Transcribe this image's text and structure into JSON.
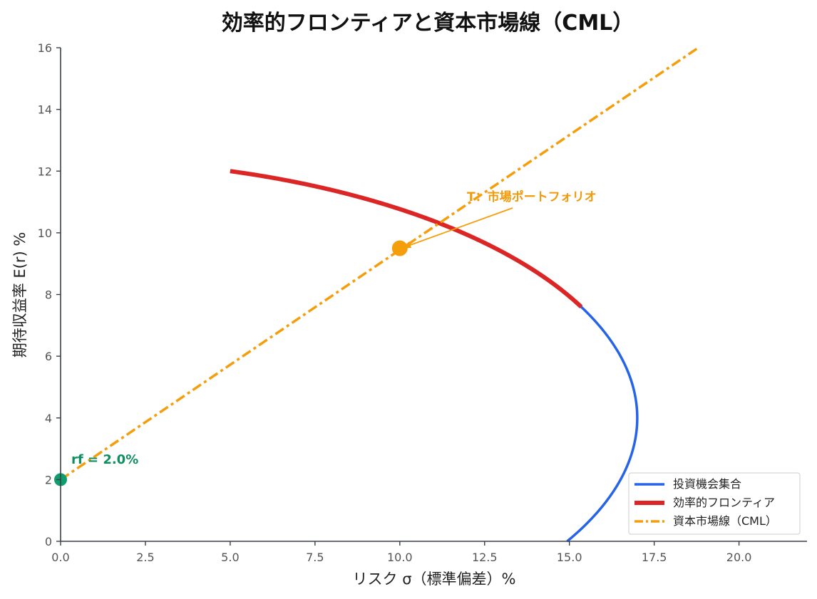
{
  "chart_data": {
    "type": "line",
    "title": "効率的フロンティアと資本市場線（CML）",
    "xlabel": "リスク σ（標準偏差）%",
    "ylabel": "期待収益率 E(r) %",
    "xlim": [
      0,
      22
    ],
    "ylim": [
      0,
      16
    ],
    "xticks": [
      "0.0",
      "2.5",
      "5.0",
      "7.5",
      "10.0",
      "12.5",
      "15.0",
      "17.5",
      "20.0"
    ],
    "yticks": [
      "0",
      "2",
      "4",
      "6",
      "8",
      "10",
      "12",
      "14",
      "16"
    ],
    "grid": false,
    "legend_position": "bottom-right",
    "series": [
      {
        "name": "投資機会集合",
        "color": "#2563eb",
        "style": "solid",
        "curve": {
          "type": "hyperbola",
          "sigma_min": 5.0,
          "sigma_max": 17.0,
          "return_at_min": 12.0,
          "return_at_max": 4.0,
          "return_range": [
            0,
            12
          ]
        }
      },
      {
        "name": "効率的フロンティア",
        "color": "#dc2626",
        "style": "solid",
        "curve": {
          "type": "hyperbola-segment",
          "return_range": [
            7.6,
            12
          ]
        }
      },
      {
        "name": "資本市場線（CML）",
        "color": "#f59e0b",
        "style": "dashdot",
        "x": [
          0,
          18.8
        ],
        "y": [
          2.0,
          16.0
        ]
      }
    ],
    "points": [
      {
        "label": "rf = 2.0%",
        "x": 0,
        "y": 2.0,
        "color": "#0f9d6e"
      },
      {
        "label": "T：市場ポートフォリオ",
        "x": 10.0,
        "y": 9.5,
        "color": "#f59e0b"
      }
    ]
  }
}
